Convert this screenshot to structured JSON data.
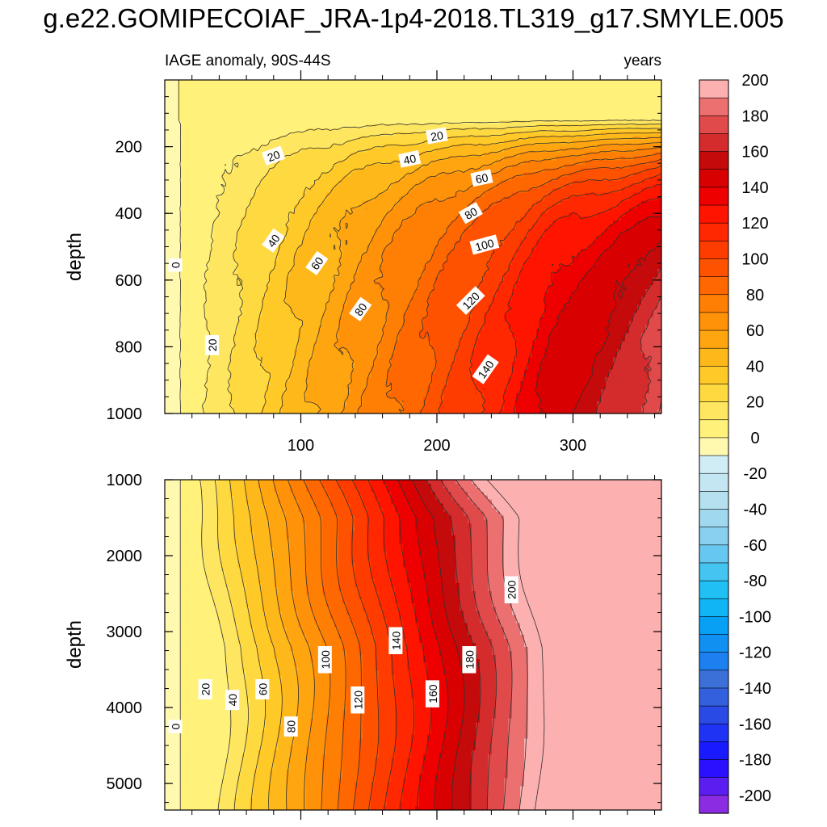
{
  "figure": {
    "title": "g.e22.GOMIPECOIAF_JRA-1p4-2018.TL319_g17.SMYLE.005",
    "subtitle_left": "IAGE anomaly, 90S-44S",
    "subtitle_right": "years"
  },
  "colors": {
    "levels": [
      -210,
      -200,
      -190,
      -180,
      -170,
      -160,
      -150,
      -140,
      -130,
      -120,
      -110,
      -100,
      -90,
      -80,
      -70,
      -60,
      -50,
      -40,
      -30,
      -20,
      -10,
      0,
      10,
      20,
      30,
      40,
      50,
      60,
      70,
      80,
      90,
      100,
      110,
      120,
      130,
      140,
      150,
      160,
      170,
      180,
      190,
      200,
      210
    ],
    "palette": [
      "#8b2be2",
      "#5a1ef0",
      "#2a10ff",
      "#1a1aff",
      "#1f33f5",
      "#2a4ae6",
      "#3360dd",
      "#3a70d8",
      "#1d80f0",
      "#1090f0",
      "#08a0f5",
      "#10b5f5",
      "#20c0f5",
      "#44c4f0",
      "#66c8f0",
      "#88cff0",
      "#a0d8f0",
      "#b4e0f0",
      "#c4e6f2",
      "#d0ecf5",
      "#fff9b0",
      "#fff17a",
      "#ffe660",
      "#ffd940",
      "#ffc928",
      "#ffb81a",
      "#ffa510",
      "#ff9208",
      "#ff7e04",
      "#ff6800",
      "#ff5200",
      "#ff3c00",
      "#ff2800",
      "#ff1400",
      "#ee0000",
      "#d80000",
      "#c40a0a",
      "#d42c2c",
      "#e04a4a",
      "#ec7070",
      "#fcb0b0"
    ],
    "line": "#303030"
  },
  "chart_data": [
    {
      "type": "contour",
      "panel": "upper",
      "ylabel": "depth",
      "xlim": [
        0,
        365
      ],
      "ylim": [
        1000,
        0
      ],
      "y_ticks": [
        200,
        400,
        600,
        800,
        1000
      ],
      "x_ticks": [
        100,
        200,
        300
      ],
      "x_tick_labels": [
        "100",
        "200",
        "300"
      ],
      "contour_labels": [
        {
          "text": "0",
          "x": 8,
          "y": 555,
          "angle": -90
        },
        {
          "text": "20",
          "x": 35,
          "y": 795,
          "angle": -90
        },
        {
          "text": "20",
          "x": 80,
          "y": 228,
          "angle": -20
        },
        {
          "text": "20",
          "x": 200,
          "y": 168,
          "angle": -10
        },
        {
          "text": "40",
          "x": 80,
          "y": 482,
          "angle": -55
        },
        {
          "text": "40",
          "x": 180,
          "y": 238,
          "angle": -12
        },
        {
          "text": "60",
          "x": 112,
          "y": 550,
          "angle": -55
        },
        {
          "text": "60",
          "x": 233,
          "y": 295,
          "angle": -12
        },
        {
          "text": "80",
          "x": 144,
          "y": 688,
          "angle": -55
        },
        {
          "text": "80",
          "x": 225,
          "y": 400,
          "angle": -30
        },
        {
          "text": "100",
          "x": 235,
          "y": 495,
          "angle": -15
        },
        {
          "text": "120",
          "x": 225,
          "y": 662,
          "angle": -45
        },
        {
          "text": "140",
          "x": 236,
          "y": 868,
          "angle": -55
        }
      ]
    },
    {
      "type": "contour",
      "panel": "lower",
      "ylabel": "depth",
      "xlim": [
        0,
        365
      ],
      "ylim": [
        5350,
        1000
      ],
      "y_ticks": [
        1000,
        2000,
        3000,
        4000,
        5000
      ],
      "x_ticks": [
        100,
        200,
        300
      ],
      "contour_labels": [
        {
          "text": "0",
          "x": 8,
          "y": 4250,
          "angle": -90
        },
        {
          "text": "20",
          "x": 30,
          "y": 3760,
          "angle": -90
        },
        {
          "text": "40",
          "x": 50,
          "y": 3900,
          "angle": -90
        },
        {
          "text": "60",
          "x": 72,
          "y": 3760,
          "angle": -90
        },
        {
          "text": "80",
          "x": 93,
          "y": 4250,
          "angle": -90
        },
        {
          "text": "100",
          "x": 118,
          "y": 3370,
          "angle": -90
        },
        {
          "text": "120",
          "x": 142,
          "y": 3900,
          "angle": -90
        },
        {
          "text": "140",
          "x": 170,
          "y": 3120,
          "angle": -90
        },
        {
          "text": "160",
          "x": 197,
          "y": 3820,
          "angle": -90
        },
        {
          "text": "180",
          "x": 224,
          "y": 3370,
          "angle": -90
        },
        {
          "text": "200",
          "x": 255,
          "y": 2450,
          "angle": -90
        }
      ]
    }
  ],
  "colorbar": {
    "labels": [
      "200",
      "180",
      "160",
      "140",
      "120",
      "100",
      "80",
      "60",
      "40",
      "20",
      "0",
      "-20",
      "-40",
      "-60",
      "-80",
      "-100",
      "-120",
      "-140",
      "-160",
      "-180",
      "-200"
    ],
    "values": [
      200,
      180,
      160,
      140,
      120,
      100,
      80,
      60,
      40,
      20,
      0,
      -20,
      -40,
      -60,
      -80,
      -100,
      -120,
      -140,
      -160,
      -180,
      -200
    ]
  }
}
